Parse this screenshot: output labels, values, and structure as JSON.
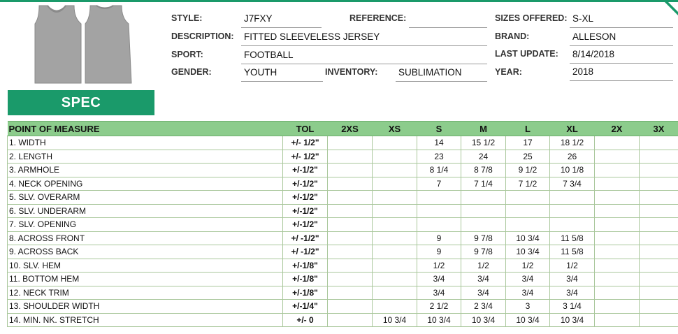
{
  "header": {
    "style_label": "STYLE:",
    "style_value": "J7FXY",
    "reference_label": "REFERENCE:",
    "reference_value": "",
    "sizes_offered_label": "SIZES OFFERED:",
    "sizes_offered_value": "S-XL",
    "description_label": "DESCRIPTION:",
    "description_value": "FITTED SLEEVELESS JERSEY",
    "brand_label": "BRAND:",
    "brand_value": "ALLESON",
    "sport_label": "SPORT:",
    "sport_value": "FOOTBALL",
    "last_update_label": "LAST UPDATE:",
    "last_update_value": "8/14/2018",
    "gender_label": "GENDER:",
    "gender_value": "YOUTH",
    "inventory_label": "INVENTORY:",
    "inventory_value": "SUBLIMATION",
    "year_label": "YEAR:",
    "year_value": "2018"
  },
  "spec_banner": "SPEC",
  "colors": {
    "brand_green": "#1a9a6a",
    "header_green": "#8ccc8c",
    "garment_gray": "#a3a3a3"
  },
  "table": {
    "columns": [
      "POINT OF MEASURE",
      "TOL",
      "2XS",
      "XS",
      "S",
      "M",
      "L",
      "XL",
      "2X",
      "3X"
    ],
    "rows": [
      [
        "1. WIDTH",
        "+/- 1/2\"",
        "",
        "",
        "14",
        "15 1/2",
        "17",
        "18 1/2",
        "",
        ""
      ],
      [
        "2. LENGTH",
        "+/- 1/2\"",
        "",
        "",
        "23",
        "24",
        "25",
        "26",
        "",
        ""
      ],
      [
        "3. ARMHOLE",
        "+/-1/2\"",
        "",
        "",
        "8 1/4",
        "8 7/8",
        "9 1/2",
        "10 1/8",
        "",
        ""
      ],
      [
        "4. NECK OPENING",
        "+/-1/2\"",
        "",
        "",
        "7",
        "7 1/4",
        "7 1/2",
        "7 3/4",
        "",
        ""
      ],
      [
        "5. SLV. OVERARM",
        "+/-1/2\"",
        "",
        "",
        "",
        "",
        "",
        "",
        "",
        ""
      ],
      [
        "6. SLV. UNDERARM",
        "+/-1/2\"",
        "",
        "",
        "",
        "",
        "",
        "",
        "",
        ""
      ],
      [
        "7. SLV. OPENING",
        "+/-1/2\"",
        "",
        "",
        "",
        "",
        "",
        "",
        "",
        ""
      ],
      [
        "8. ACROSS FRONT",
        "+/ -1/2\"",
        "",
        "",
        "9",
        "9 7/8",
        "10 3/4",
        "11 5/8",
        "",
        ""
      ],
      [
        "9. ACROSS BACK",
        "+/ -1/2\"",
        "",
        "",
        "9",
        "9 7/8",
        "10 3/4",
        "11 5/8",
        "",
        ""
      ],
      [
        "10. SLV. HEM",
        "+/-1/8\"",
        "",
        "",
        "1/2",
        "1/2",
        "1/2",
        "1/2",
        "",
        ""
      ],
      [
        "11. BOTTOM HEM",
        "+/-1/8\"",
        "",
        "",
        "3/4",
        "3/4",
        "3/4",
        "3/4",
        "",
        ""
      ],
      [
        "12. NECK TRIM",
        "+/-1/8\"",
        "",
        "",
        "3/4",
        "3/4",
        "3/4",
        "3/4",
        "",
        ""
      ],
      [
        "13. SHOULDER WIDTH",
        "+/-1/4\"",
        "",
        "",
        "2 1/2",
        "2 3/4",
        "3",
        "3 1/4",
        "",
        ""
      ],
      [
        "14. MIN. NK. STRETCH",
        "+/- 0",
        "",
        "10 3/4",
        "10 3/4",
        "10 3/4",
        "10 3/4",
        "10 3/4",
        "",
        ""
      ]
    ]
  }
}
